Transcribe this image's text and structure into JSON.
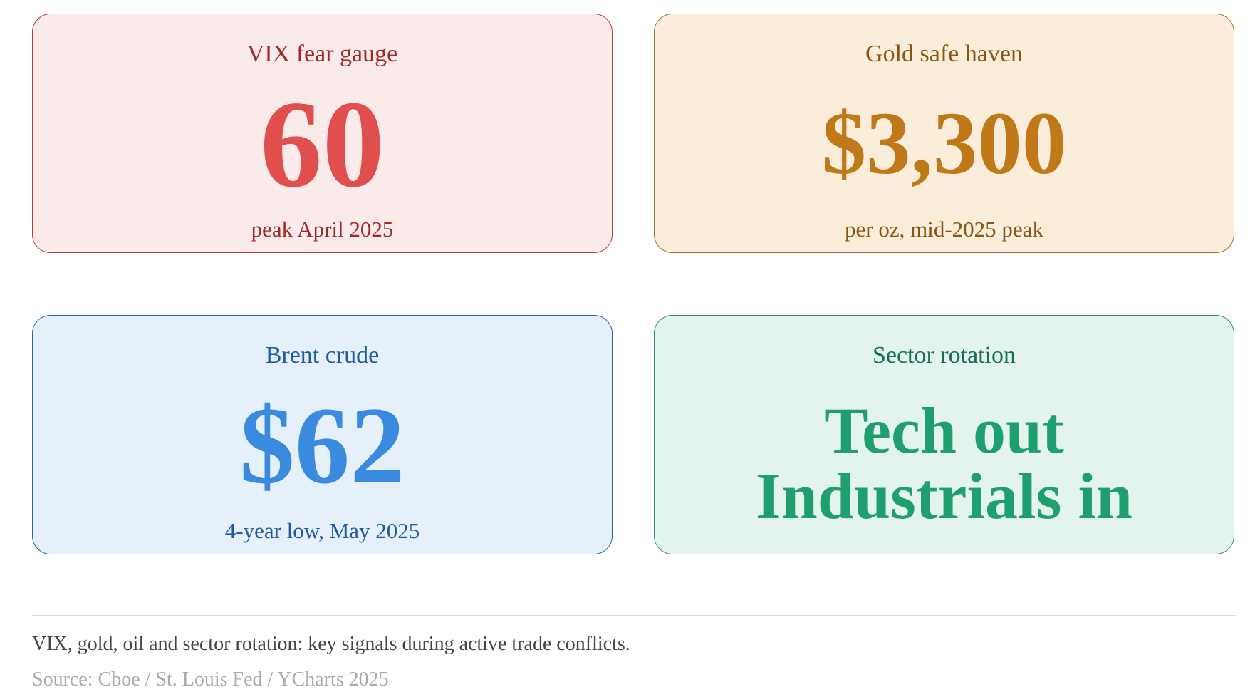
{
  "cards": [
    {
      "label": "VIX fear gauge",
      "value_lines": [
        "60"
      ],
      "note": "peak April 2025"
    },
    {
      "label": "Gold safe haven",
      "value_lines": [
        "$3,300"
      ],
      "note": "per oz, mid-2025 peak"
    },
    {
      "label": "Brent crude",
      "value_lines": [
        "$62"
      ],
      "note": "4-year low, May 2025"
    },
    {
      "label": "Sector rotation",
      "value_lines": [
        "Tech out",
        "Industrials in"
      ]
    }
  ],
  "footer": {
    "caption": "VIX, gold, oil and sector rotation: key signals during active trade conflicts.",
    "source": "Source: Cboe / St. Louis Fed / YCharts 2025"
  }
}
